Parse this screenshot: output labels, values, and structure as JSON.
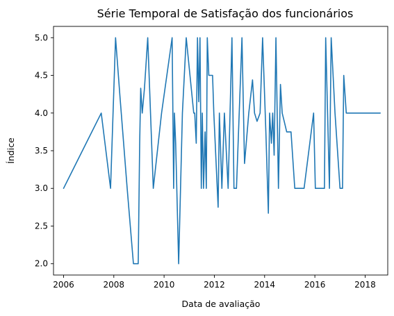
{
  "chart_data": {
    "type": "line",
    "title": "Série Temporal de Satisfação dos funcionários",
    "xlabel": "Data de avaliação",
    "ylabel": "Índice",
    "xlim": [
      2005.6,
      2018.9
    ],
    "ylim": [
      1.85,
      5.15
    ],
    "xticks": [
      "2006",
      "2008",
      "2010",
      "2012",
      "2014",
      "2016",
      "2018"
    ],
    "yticks": [
      "2.0",
      "2.5",
      "3.0",
      "3.5",
      "4.0",
      "4.5",
      "5.0"
    ],
    "grid": false,
    "line_color": "#1f77b4",
    "series": [
      {
        "x": [
          2006.0,
          2007.5,
          2007.87,
          2008.07,
          2008.25,
          2008.53,
          2008.78,
          2008.97,
          2009.03,
          2009.07,
          2009.13,
          2009.22,
          2009.35,
          2009.57,
          2009.9,
          2010.32,
          2010.38,
          2010.41,
          2010.46,
          2010.58,
          2010.73,
          2010.88,
          2011.18,
          2011.22,
          2011.28,
          2011.33,
          2011.38,
          2011.43,
          2011.48,
          2011.52,
          2011.57,
          2011.63,
          2011.68,
          2011.72,
          2011.78,
          2011.88,
          2011.93,
          2011.98,
          2012.15,
          2012.2,
          2012.3,
          2012.4,
          2012.55,
          2012.7,
          2012.78,
          2012.88,
          2013.1,
          2013.2,
          2013.37,
          2013.52,
          2013.6,
          2013.7,
          2013.82,
          2013.92,
          2014.05,
          2014.15,
          2014.2,
          2014.27,
          2014.32,
          2014.38,
          2014.45,
          2014.55,
          2014.63,
          2014.7,
          2014.78,
          2014.88,
          2015.05,
          2015.2,
          2015.28,
          2015.35,
          2015.43,
          2015.57,
          2015.95,
          2016.02,
          2016.05,
          2016.38,
          2016.43,
          2016.58,
          2016.65,
          2016.8,
          2017.0,
          2017.1,
          2017.15,
          2017.25,
          2017.32,
          2017.5,
          2018.0,
          2018.6
        ],
        "y": [
          3.0,
          4.0,
          3.0,
          5.0,
          4.2,
          3.0,
          2.0,
          2.0,
          3.6,
          4.33,
          4.0,
          4.33,
          5.0,
          3.0,
          4.0,
          5.0,
          3.0,
          4.0,
          3.6,
          2.0,
          4.0,
          5.0,
          4.0,
          4.0,
          3.6,
          5.0,
          4.15,
          5.0,
          3.0,
          4.0,
          3.0,
          3.75,
          3.0,
          5.0,
          4.5,
          4.5,
          4.5,
          4.0,
          2.75,
          4.0,
          3.0,
          4.0,
          3.0,
          5.0,
          3.0,
          3.0,
          5.0,
          3.33,
          4.0,
          4.44,
          4.0,
          3.89,
          4.0,
          5.0,
          3.75,
          2.67,
          4.0,
          3.6,
          4.0,
          3.44,
          5.0,
          3.0,
          4.38,
          4.0,
          3.89,
          3.75,
          3.75,
          3.0,
          3.0,
          3.0,
          3.0,
          3.0,
          4.0,
          3.0,
          3.0,
          3.0,
          5.0,
          3.0,
          5.0,
          4.0,
          3.0,
          3.0,
          4.5,
          4.0,
          4.0,
          4.0,
          4.0,
          4.0
        ]
      }
    ]
  }
}
